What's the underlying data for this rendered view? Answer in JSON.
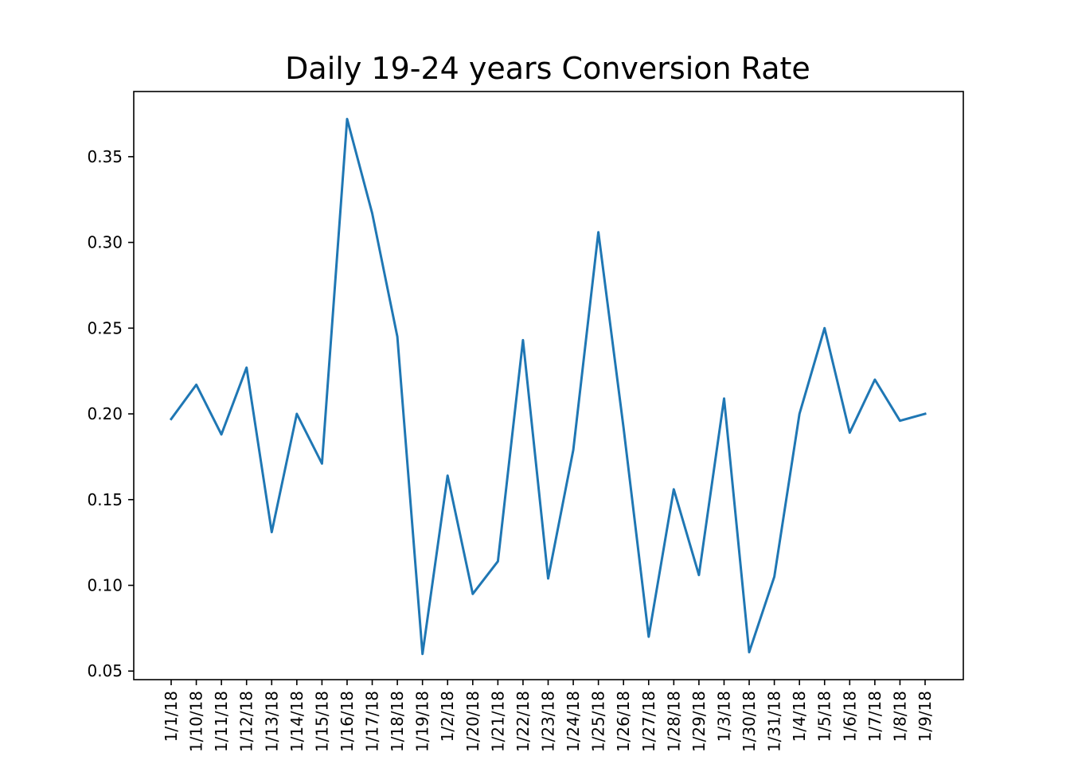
{
  "chart_data": {
    "type": "line",
    "title": "Daily 19-24 years Conversion Rate",
    "xlabel": "",
    "ylabel": "",
    "ylim": [
      0.045,
      0.388
    ],
    "yticks": [
      0.05,
      0.1,
      0.15,
      0.2,
      0.25,
      0.3,
      0.35
    ],
    "ytick_labels": [
      "0.05",
      "0.10",
      "0.15",
      "0.20",
      "0.25",
      "0.30",
      "0.35"
    ],
    "grid": false,
    "legend": "none",
    "line_color": "#1f77b4",
    "categories": [
      "1/1/18",
      "1/10/18",
      "1/11/18",
      "1/12/18",
      "1/13/18",
      "1/14/18",
      "1/15/18",
      "1/16/18",
      "1/17/18",
      "1/18/18",
      "1/19/18",
      "1/2/18",
      "1/20/18",
      "1/21/18",
      "1/22/18",
      "1/23/18",
      "1/24/18",
      "1/25/18",
      "1/26/18",
      "1/27/18",
      "1/28/18",
      "1/29/18",
      "1/3/18",
      "1/30/18",
      "1/31/18",
      "1/4/18",
      "1/5/18",
      "1/6/18",
      "1/7/18",
      "1/8/18",
      "1/9/18"
    ],
    "series": [
      {
        "values": [
          0.197,
          0.217,
          0.188,
          0.227,
          0.131,
          0.2,
          0.171,
          0.372,
          0.317,
          0.245,
          0.06,
          0.164,
          0.095,
          0.114,
          0.243,
          0.104,
          0.179,
          0.306,
          0.192,
          0.07,
          0.156,
          0.106,
          0.209,
          0.061,
          0.105,
          0.2,
          0.25,
          0.189,
          0.22,
          0.196,
          0.2
        ]
      }
    ]
  }
}
